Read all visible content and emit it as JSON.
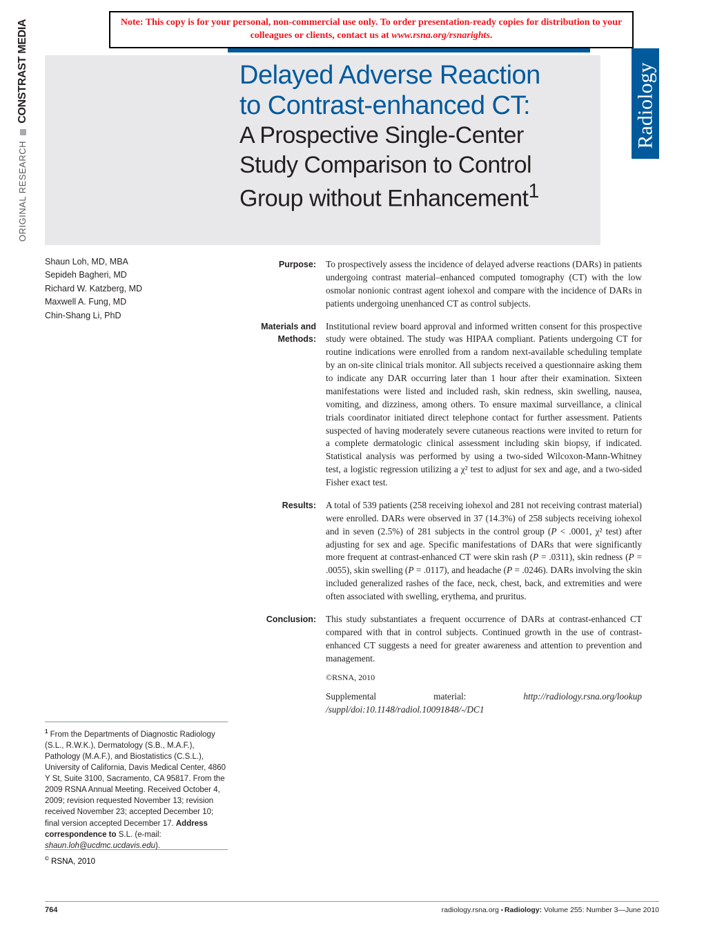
{
  "notice": {
    "bold_text": "Note: This copy is for your personal, non-commercial use only. To order presentation-ready copies for distribution to your colleagues or clients, contact us at ",
    "italic_url": "www.rsna.org/rsnarights",
    "end": "."
  },
  "sidebar": {
    "section": "ORIGINAL RESEARCH",
    "topic": "CONSTRAST MEDIA"
  },
  "journal_name": "Radiology",
  "title": {
    "main_line1": "Delayed Adverse Reaction",
    "main_line2": "to Contrast-enhanced CT:",
    "sub": "A Prospective Single-Center Study Comparison to Control Group without Enhancement",
    "sup": "1"
  },
  "authors": [
    "Shaun Loh, MD, MBA",
    "Sepideh Bagheri, MD",
    "Richard W. Katzberg, MD",
    "Maxwell A. Fung, MD",
    "Chin-Shang Li, PhD"
  ],
  "abstract": {
    "purpose": {
      "label": "Purpose:",
      "text": "To prospectively assess the incidence of delayed adverse reactions (DARs) in patients undergoing contrast material–enhanced computed tomography (CT) with the low osmolar nonionic contrast agent iohexol and compare with the incidence of DARs in patients undergoing unenhanced CT as control subjects."
    },
    "methods": {
      "label": "Materials and Methods:",
      "text": "Institutional review board approval and informed written consent for this prospective study were obtained. The study was HIPAA compliant. Patients undergoing CT for routine indications were enrolled from a random next-available scheduling template by an on-site clinical trials monitor. All subjects received a questionnaire asking them to indicate any DAR occurring later than 1 hour after their examination. Sixteen manifestations were listed and included rash, skin redness, skin swelling, nausea, vomiting, and dizziness, among others. To ensure maximal surveillance, a clinical trials coordinator initiated direct telephone contact for further assessment. Patients suspected of having moderately severe cutaneous reactions were invited to return for a complete dermatologic clinical assessment including skin biopsy, if indicated. Statistical analysis was performed by using a two-sided Wilcoxon-Mann-Whitney test, a logistic regression utilizing a χ² test to adjust for sex and age, and a two-sided Fisher exact test."
    },
    "results": {
      "label": "Results:",
      "text_html": "A total of 539 patients (258 receiving iohexol and 281 not receiving contrast material) were enrolled. DARs were observed in 37 (14.3%) of 258 subjects receiving iohexol and in seven (2.5%) of 281 subjects in the control group (<i>P</i> &lt; .0001, χ² test) after adjusting for sex and age. Specific manifestations of DARs that were significantly more frequent at contrast-enhanced CT were skin rash (<i>P</i> = .0311), skin redness (<i>P</i> = .0055), skin swelling (<i>P</i> = .0117), and headache (<i>P</i> = .0246). DARs involving the skin included generalized rashes of the face, neck, chest, back, and extremities and were often associated with swelling, erythema, and pruritus."
    },
    "conclusion": {
      "label": "Conclusion:",
      "text": "This study substantiates a frequent occurrence of DARs at contrast-enhanced CT compared with that in control subjects. Continued growth in the use of contrast-enhanced CT suggests a need for greater awareness and attention to prevention and management.",
      "copyright": "©RSNA, 2010",
      "supplement_label": "Supplemental material: ",
      "supplement_url": "http://radiology.rsna.org/lookup /suppl/doi:10.1148/radiol.10091848/-/DC1"
    }
  },
  "affiliation": {
    "sup": "1",
    "text": " From the Departments of Diagnostic Radiology (S.L., R.W.K.), Dermatology (S.B., M.A.F.), Pathology (M.A.F.), and Biostatistics (C.S.L.), University of California, Davis Medical Center, 4860 Y St, Suite 3100, Sacramento, CA 95817. From the 2009 RSNA Annual Meeting. Received October 4, 2009; revision requested November 13; revision received November 23; accepted December 10; final version accepted December 17. ",
    "correspondence_label": "Address correspondence to",
    "correspondence_text": " S.L. (e-mail: ",
    "email": "shaun.loh@ucdmc.ucdavis.edu",
    "end": ")."
  },
  "bottom_copyright": "© RSNA, 2010",
  "footer": {
    "page": "764",
    "site": "radiology.rsna.org",
    "journal": "Radiology:",
    "issue": " Volume 255: Number 3—June 2010"
  },
  "colors": {
    "brand_blue": "#005a9c",
    "notice_red": "#ee161f",
    "grey_bg": "#e8e8ea",
    "text": "#231f20"
  }
}
